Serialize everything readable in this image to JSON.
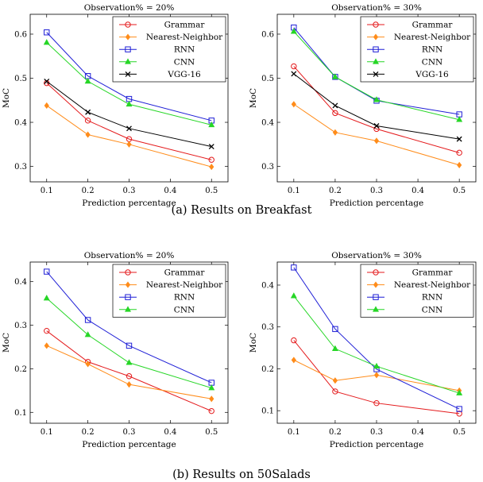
{
  "captions": {
    "a": "(a) Results on Breakfast",
    "b": "(b) Results on 50Salads"
  },
  "series_styles": {
    "Grammar": {
      "color": "#e41a1c",
      "marker": "circle"
    },
    "Nearest-Neighbor": {
      "color": "#ff8c1a",
      "marker": "diamond"
    },
    "RNN": {
      "color": "#1f1fd6",
      "marker": "square"
    },
    "CNN": {
      "color": "#26d626",
      "marker": "triangle"
    },
    "VGG-16": {
      "color": "#000000",
      "marker": "cross"
    }
  },
  "chart_data": [
    {
      "type": "line",
      "title": "Observation% = 20%",
      "xlabel": "Prediction percentage",
      "ylabel": "MoC",
      "xlim": [
        0.06,
        0.54
      ],
      "ylim": [
        0.265,
        0.645
      ],
      "xticks": [
        0.1,
        0.2,
        0.3,
        0.4,
        0.5
      ],
      "yticks": [
        0.3,
        0.4,
        0.5,
        0.6
      ],
      "x": [
        0.1,
        0.2,
        0.3,
        0.5
      ],
      "legend": "top-right",
      "series": [
        {
          "name": "Grammar",
          "values": [
            0.489,
            0.404,
            0.362,
            0.315
          ]
        },
        {
          "name": "Nearest-Neighbor",
          "values": [
            0.438,
            0.372,
            0.35,
            0.299
          ]
        },
        {
          "name": "RNN",
          "values": [
            0.604,
            0.505,
            0.453,
            0.404
          ]
        },
        {
          "name": "CNN",
          "values": [
            0.581,
            0.493,
            0.441,
            0.394
          ]
        },
        {
          "name": "VGG-16",
          "values": [
            0.493,
            0.423,
            0.386,
            0.345
          ]
        }
      ]
    },
    {
      "type": "line",
      "title": "Observation% = 30%",
      "xlabel": "Prediction percentage",
      "ylabel": "MoC",
      "xlim": [
        0.06,
        0.54
      ],
      "ylim": [
        0.265,
        0.645
      ],
      "xticks": [
        0.1,
        0.2,
        0.3,
        0.4,
        0.5
      ],
      "yticks": [
        0.3,
        0.4,
        0.5,
        0.6
      ],
      "x": [
        0.1,
        0.2,
        0.3,
        0.5
      ],
      "legend": "top-right",
      "series": [
        {
          "name": "Grammar",
          "values": [
            0.527,
            0.421,
            0.385,
            0.331
          ]
        },
        {
          "name": "Nearest-Neighbor",
          "values": [
            0.441,
            0.377,
            0.358,
            0.303
          ]
        },
        {
          "name": "RNN",
          "values": [
            0.615,
            0.503,
            0.449,
            0.418
          ]
        },
        {
          "name": "CNN",
          "values": [
            0.606,
            0.503,
            0.451,
            0.406
          ]
        },
        {
          "name": "VGG-16",
          "values": [
            0.51,
            0.438,
            0.392,
            0.362
          ]
        }
      ]
    },
    {
      "type": "line",
      "title": "Observation% = 20%",
      "xlabel": "Prediction percentage",
      "ylabel": "MoC",
      "xlim": [
        0.06,
        0.54
      ],
      "ylim": [
        0.075,
        0.445
      ],
      "xticks": [
        0.1,
        0.2,
        0.3,
        0.4,
        0.5
      ],
      "yticks": [
        0.1,
        0.2,
        0.3,
        0.4
      ],
      "x": [
        0.1,
        0.2,
        0.3,
        0.5
      ],
      "legend": "top-right",
      "series": [
        {
          "name": "Grammar",
          "values": [
            0.287,
            0.216,
            0.183,
            0.103
          ]
        },
        {
          "name": "Nearest-Neighbor",
          "values": [
            0.253,
            0.211,
            0.164,
            0.131
          ]
        },
        {
          "name": "RNN",
          "values": [
            0.423,
            0.312,
            0.253,
            0.168
          ]
        },
        {
          "name": "CNN",
          "values": [
            0.362,
            0.278,
            0.214,
            0.156
          ]
        }
      ]
    },
    {
      "type": "line",
      "title": "Observation% = 30%",
      "xlabel": "Prediction percentage",
      "ylabel": "MoC",
      "xlim": [
        0.06,
        0.54
      ],
      "ylim": [
        0.07,
        0.455
      ],
      "xticks": [
        0.1,
        0.2,
        0.3,
        0.4,
        0.5
      ],
      "yticks": [
        0.1,
        0.2,
        0.3,
        0.4
      ],
      "x": [
        0.1,
        0.2,
        0.3,
        0.5
      ],
      "legend": "top-right",
      "series": [
        {
          "name": "Grammar",
          "values": [
            0.268,
            0.146,
            0.118,
            0.093
          ]
        },
        {
          "name": "Nearest-Neighbor",
          "values": [
            0.221,
            0.172,
            0.185,
            0.148
          ]
        },
        {
          "name": "RNN",
          "values": [
            0.442,
            0.295,
            0.199,
            0.104
          ]
        },
        {
          "name": "CNN",
          "values": [
            0.374,
            0.248,
            0.206,
            0.142
          ]
        }
      ]
    }
  ]
}
